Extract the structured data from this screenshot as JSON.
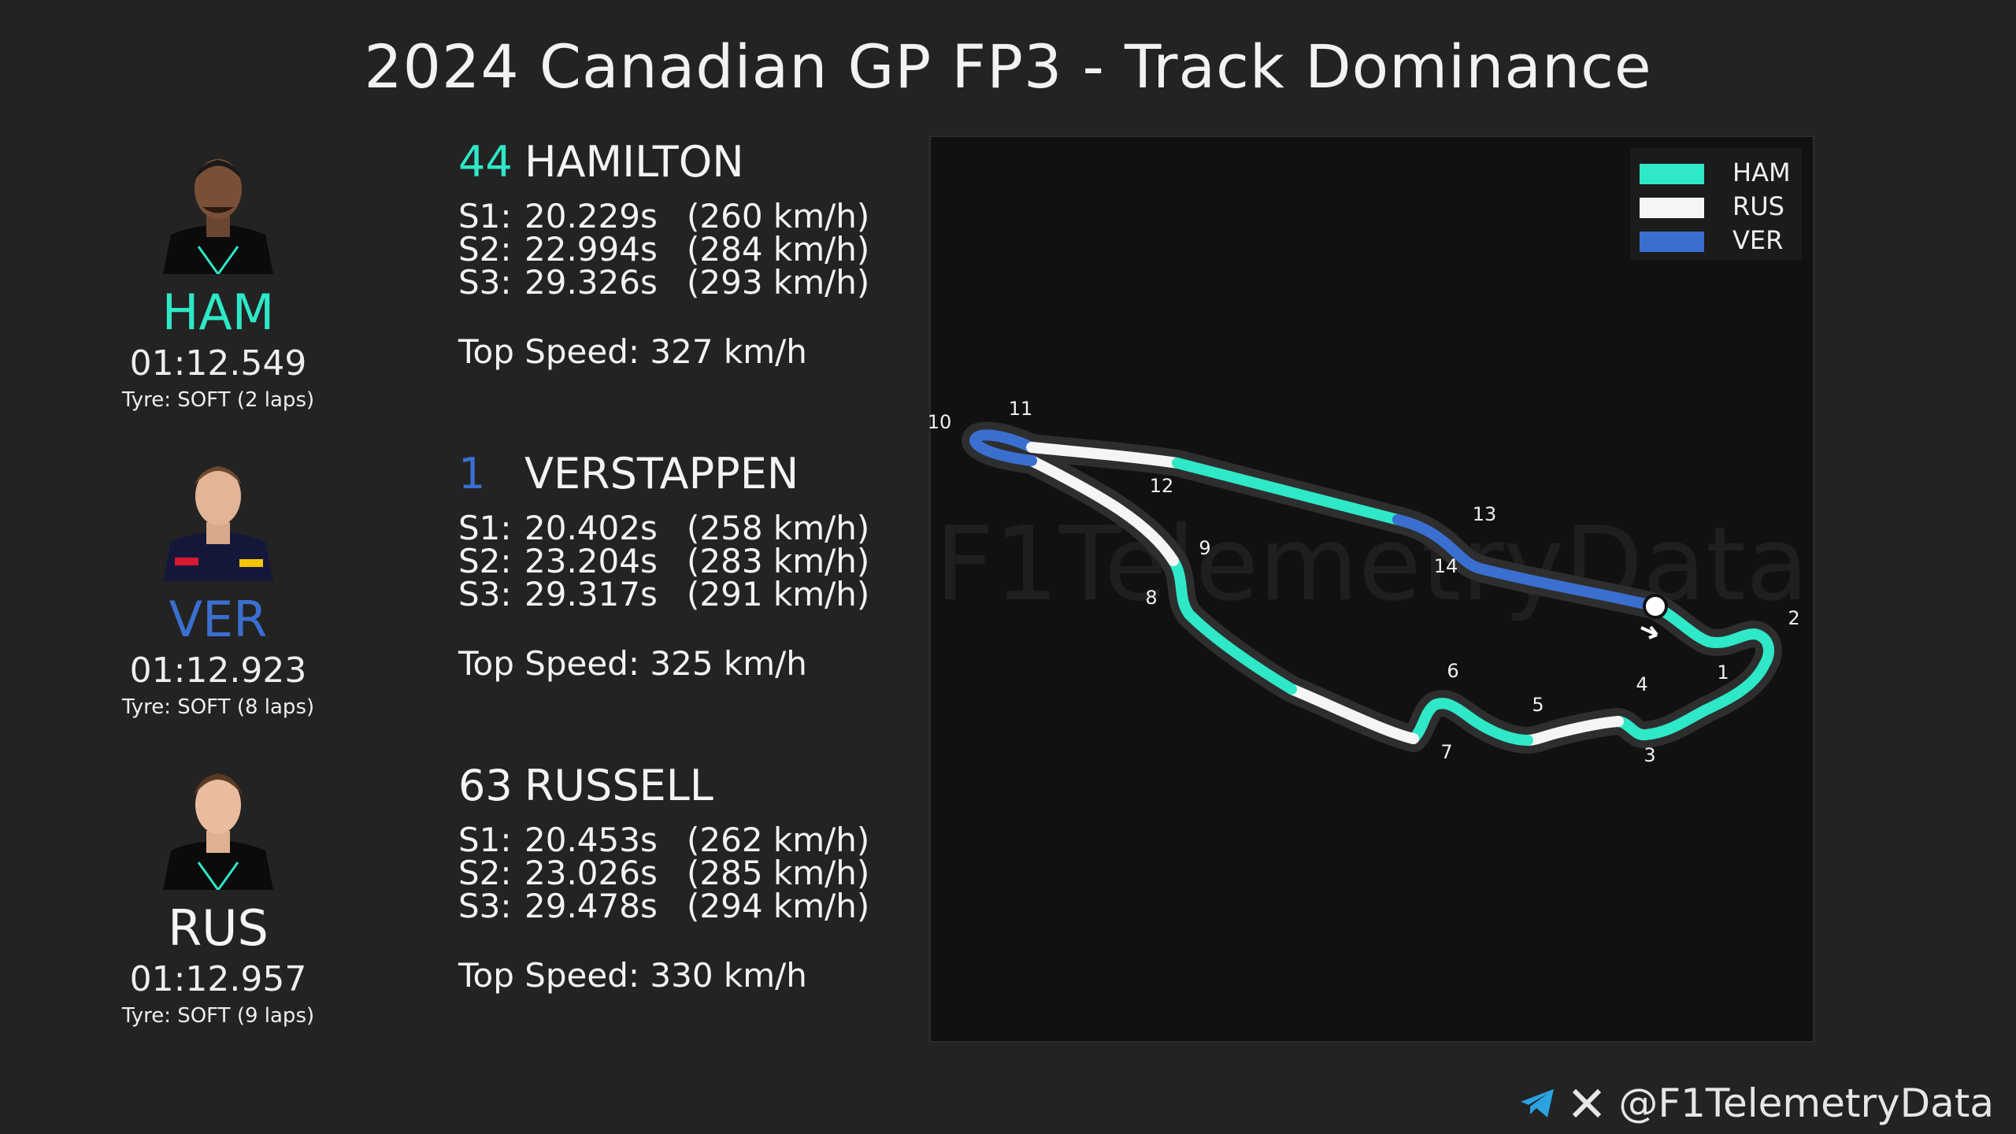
{
  "title": "2024 Canadian GP FP3 - Track Dominance",
  "colors": {
    "HAM": "#2ee8c8",
    "RUS": "#f5f5f5",
    "VER": "#3a6fd0",
    "background": "#232323",
    "panel": "#111111"
  },
  "drivers": [
    {
      "abbr": "HAM",
      "number": "44",
      "name": "HAMILTON",
      "laptime": "01:12.549",
      "tyre": "Tyre: SOFT (2 laps)",
      "sectors": [
        {
          "label": "S1:",
          "time": "20.229s",
          "speed": "(260 km/h)"
        },
        {
          "label": "S2:",
          "time": "22.994s",
          "speed": "(284 km/h)"
        },
        {
          "label": "S3:",
          "time": "29.326s",
          "speed": "(293 km/h)"
        }
      ],
      "top_speed": "Top Speed: 327 km/h"
    },
    {
      "abbr": "VER",
      "number": "1",
      "name": "VERSTAPPEN",
      "laptime": "01:12.923",
      "tyre": "Tyre: SOFT (8 laps)",
      "sectors": [
        {
          "label": "S1:",
          "time": "20.402s",
          "speed": "(258 km/h)"
        },
        {
          "label": "S2:",
          "time": "23.204s",
          "speed": "(283 km/h)"
        },
        {
          "label": "S3:",
          "time": "29.317s",
          "speed": "(291 km/h)"
        }
      ],
      "top_speed": "Top Speed: 325 km/h"
    },
    {
      "abbr": "RUS",
      "number": "63",
      "name": "RUSSELL",
      "laptime": "01:12.957",
      "tyre": "Tyre: SOFT (9 laps)",
      "sectors": [
        {
          "label": "S1:",
          "time": "20.453s",
          "speed": "(262 km/h)"
        },
        {
          "label": "S2:",
          "time": "23.026s",
          "speed": "(285 km/h)"
        },
        {
          "label": "S3:",
          "time": "29.478s",
          "speed": "(294 km/h)"
        }
      ],
      "top_speed": "Top Speed: 330 km/h"
    }
  ],
  "chart_data": {
    "type": "track-map",
    "legend": [
      "HAM",
      "RUS",
      "VER"
    ],
    "legend_position": "top-right",
    "corner_labels": [
      "1",
      "2",
      "3",
      "4",
      "5",
      "6",
      "7",
      "8",
      "9",
      "10",
      "11",
      "12",
      "13",
      "14"
    ],
    "segment_dominance": [
      {
        "from_corner": "start/finish",
        "to_corner": "2",
        "driver": "HAM"
      },
      {
        "from_corner": "2",
        "to_corner": "4",
        "driver": "HAM"
      },
      {
        "from_corner": "4",
        "to_corner": "5",
        "driver": "RUS"
      },
      {
        "from_corner": "5",
        "to_corner": "7",
        "driver": "HAM"
      },
      {
        "from_corner": "7",
        "to_corner": "8",
        "driver": "RUS"
      },
      {
        "from_corner": "8",
        "to_corner": "9",
        "driver": "HAM"
      },
      {
        "from_corner": "9",
        "to_corner": "10",
        "driver": "RUS"
      },
      {
        "from_corner": "10",
        "to_corner": "11",
        "driver": "VER"
      },
      {
        "from_corner": "11",
        "to_corner": "12",
        "driver": "RUS"
      },
      {
        "from_corner": "12",
        "to_corner": "13",
        "driver": "HAM"
      },
      {
        "from_corner": "13",
        "to_corner": "start/finish",
        "driver": "VER"
      }
    ],
    "grid": false
  },
  "footer": {
    "handle": "@F1TelemetryData",
    "icons": [
      "telegram-icon",
      "x-logo-icon"
    ]
  },
  "watermark": "F1TelemetryData"
}
